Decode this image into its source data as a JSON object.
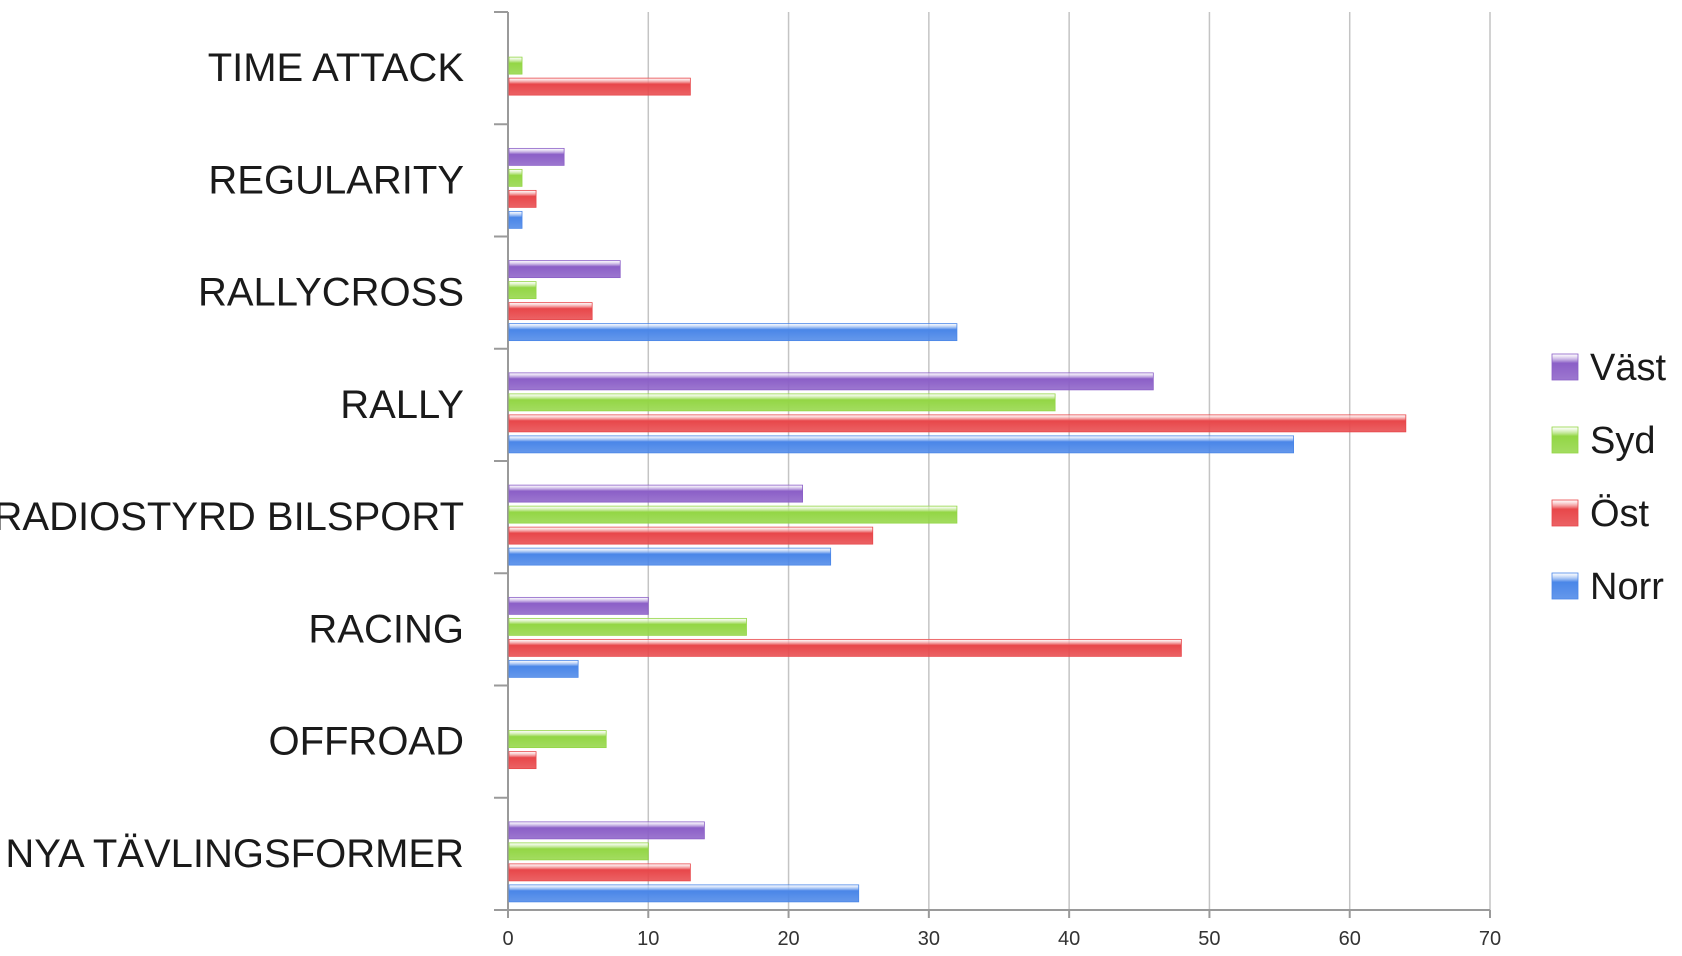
{
  "chart_data": {
    "type": "bar",
    "orientation": "horizontal",
    "categories": [
      "NYA TÄVLINGSFORMER",
      "OFFROAD",
      "RACING",
      "RADIOSTYRD BILSPORT",
      "RALLY",
      "RALLYCROSS",
      "REGULARITY",
      "TIME ATTACK"
    ],
    "series": [
      {
        "name": "Norr",
        "color": "#4a86e8",
        "values": [
          25,
          0,
          5,
          23,
          56,
          32,
          1,
          0
        ]
      },
      {
        "name": "Öst",
        "color": "#e8474a",
        "values": [
          13,
          2,
          48,
          26,
          64,
          6,
          2,
          13
        ]
      },
      {
        "name": "Syd",
        "color": "#93d645",
        "values": [
          10,
          7,
          17,
          32,
          39,
          2,
          1,
          1
        ]
      },
      {
        "name": "Väst",
        "color": "#8b5fc7",
        "values": [
          14,
          0,
          10,
          21,
          46,
          8,
          4,
          0
        ]
      }
    ],
    "xlim": [
      0,
      70
    ],
    "xticks": [
      "0",
      "10",
      "20",
      "30",
      "40",
      "50",
      "60",
      "70"
    ],
    "title": "",
    "xlabel": "",
    "ylabel": "",
    "grid": "vertical",
    "legend": {
      "placement": "right",
      "order": [
        "Väst",
        "Syd",
        "Öst",
        "Norr"
      ]
    }
  }
}
